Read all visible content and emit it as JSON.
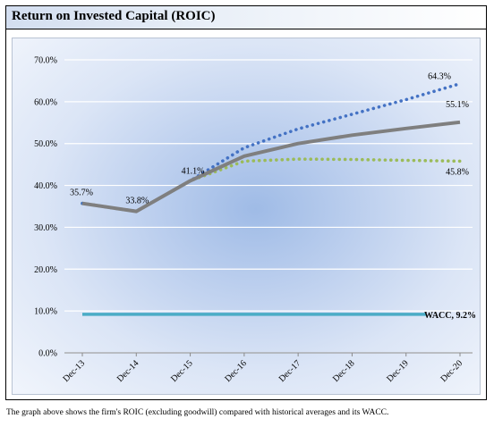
{
  "header": {
    "title": "Return on Invested Capital (ROIC)"
  },
  "caption": "The graph above shows the firm's ROIC (excluding goodwill) compared with historical averages and its WACC.",
  "chart_data": {
    "type": "line",
    "title": "",
    "xlabel": "",
    "ylabel": "",
    "categories": [
      "Dec-13",
      "Dec-14",
      "Dec-15",
      "Dec-16",
      "Dec-17",
      "Dec-18",
      "Dec-19",
      "Dec-20"
    ],
    "ylim": [
      0,
      70
    ],
    "yticks": [
      "0.0%",
      "10.0%",
      "20.0%",
      "30.0%",
      "40.0%",
      "50.0%",
      "60.0%",
      "70.0%"
    ],
    "grid": true,
    "series": [
      {
        "values": [
          35.7,
          33.8,
          41.1,
          49.0,
          53.5,
          57.0,
          60.5,
          64.3
        ],
        "color": "#4472c4",
        "style": "dotted"
      },
      {
        "values": [
          35.7,
          33.8,
          41.1,
          47.0,
          50.0,
          52.0,
          53.6,
          55.1
        ],
        "color": "#7f7f7f",
        "style": "solid"
      },
      {
        "values": [
          35.7,
          33.8,
          41.1,
          45.8,
          46.3,
          46.2,
          46.0,
          45.8
        ],
        "color": "#9bbb59",
        "style": "dotted"
      },
      {
        "values": [
          9.2,
          9.2,
          9.2,
          9.2,
          9.2,
          9.2,
          9.2,
          9.2
        ],
        "color": "#4bacc6",
        "style": "solid"
      }
    ],
    "data_labels": [
      "35.7%",
      "33.8%",
      "41.1%",
      "64.3%",
      "55.1%",
      "45.8%",
      "WACC, 9.2%"
    ]
  }
}
